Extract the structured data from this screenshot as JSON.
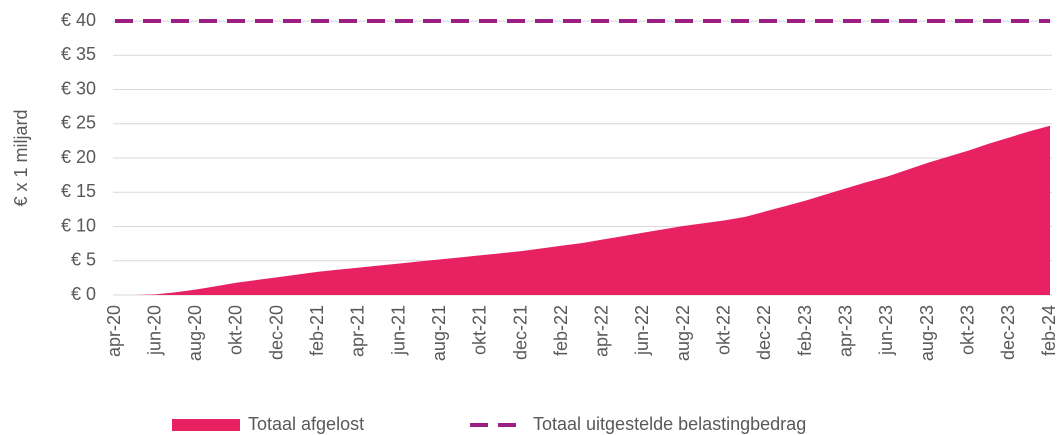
{
  "chart_data": {
    "type": "area",
    "y_label": "€ x 1 miljard",
    "categories": [
      "apr-20",
      null,
      "jun-20",
      null,
      "aug-20",
      null,
      "okt-20",
      null,
      "dec-20",
      null,
      "feb-21",
      null,
      "apr-21",
      null,
      "jun-21",
      null,
      "aug-21",
      null,
      "okt-21",
      null,
      "dec-21",
      null,
      "feb-22",
      null,
      "apr-22",
      null,
      "jun-22",
      null,
      "aug-22",
      null,
      "okt-22",
      null,
      "dec-22",
      null,
      "feb-23",
      null,
      "apr-23",
      null,
      "jun-23",
      null,
      "aug-23",
      null,
      "okt-23",
      null,
      "dec-23",
      null,
      "feb-24"
    ],
    "series": [
      {
        "name": "Totaal afgelost",
        "color": "#e82163",
        "style": "area",
        "values": [
          0,
          0,
          0.1,
          0.4,
          0.8,
          1.3,
          1.8,
          2.2,
          2.6,
          3.0,
          3.4,
          3.7,
          4.0,
          4.3,
          4.6,
          4.9,
          5.2,
          5.5,
          5.8,
          6.1,
          6.4,
          6.8,
          7.2,
          7.6,
          8.1,
          8.6,
          9.1,
          9.6,
          10.1,
          10.5,
          10.9,
          11.4,
          12.2,
          13.0,
          13.8,
          14.7,
          15.6,
          16.5,
          17.3,
          18.3,
          19.3,
          20.2,
          21.1,
          22.1,
          23.0,
          23.9,
          24.7
        ]
      },
      {
        "name": "Totaal uitgestelde belastingbedrag",
        "color": "#9b1f82",
        "style": "dashed",
        "values": [
          40,
          40,
          40,
          40,
          40,
          40,
          40,
          40,
          40,
          40,
          40,
          40,
          40,
          40,
          40,
          40,
          40,
          40,
          40,
          40,
          40,
          40,
          40,
          40,
          40,
          40,
          40,
          40,
          40,
          40,
          40,
          40,
          40,
          40,
          40,
          40,
          40,
          40,
          40,
          40,
          40,
          40,
          40,
          40,
          40,
          40,
          40
        ]
      }
    ],
    "ylim": [
      0,
      40
    ],
    "yticks": [
      {
        "value": 0,
        "label": "€ 0"
      },
      {
        "value": 5,
        "label": "€ 5"
      },
      {
        "value": 10,
        "label": "€ 10"
      },
      {
        "value": 15,
        "label": "€ 15"
      },
      {
        "value": 20,
        "label": "€ 20"
      },
      {
        "value": 25,
        "label": "€ 25"
      },
      {
        "value": 30,
        "label": "€ 30"
      },
      {
        "value": 35,
        "label": "€ 35"
      },
      {
        "value": 40,
        "label": "€ 40"
      }
    ],
    "grid": true,
    "legend": "bottom"
  }
}
